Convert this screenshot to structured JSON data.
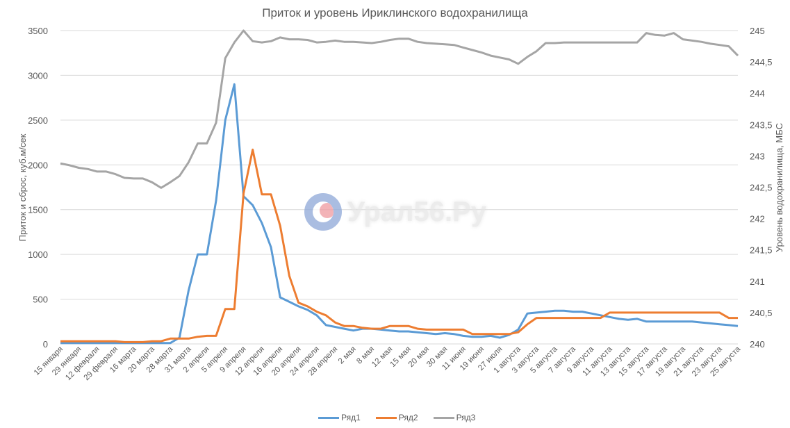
{
  "title": "Приток и уровень Ириклинского водохранилища",
  "watermark": "Урал56.Ру",
  "chart_data": {
    "type": "line",
    "title": "Приток и уровень Ириклинского водохранилища",
    "ylabel": "Приток и сброс, куб.м/сек",
    "y2label": "Уровень водохранилища, МБС",
    "ylim": [
      0,
      3500
    ],
    "y2lim": [
      240,
      245
    ],
    "yticks": [
      "0",
      "500",
      "1000",
      "1500",
      "2000",
      "2500",
      "3000",
      "3500"
    ],
    "y2ticks": [
      "240",
      "240,5",
      "241",
      "241,5",
      "242",
      "242,5",
      "243",
      "243,5",
      "244",
      "244,5",
      "245"
    ],
    "grid": true,
    "legend_position": "bottom",
    "x_tick_labels": [
      "15 января",
      "29 января",
      "12 февраля",
      "29 февраля",
      "16 марта",
      "20 марта",
      "28 марта",
      "31 марта",
      "2 апреля",
      "5 апреля",
      "9 апреля",
      "12 апреля",
      "16 апреля",
      "20 апреля",
      "24 апреля",
      "28 апреля",
      "2 мая",
      "8 мая",
      "12 мая",
      "15 мая",
      "20 мая",
      "30 мая",
      "11 июня",
      "19 июня",
      "27 июля",
      "1 августа",
      "3 августа",
      "5 августа",
      "7 августа",
      "9 августа",
      "11 августа",
      "13 августа",
      "15 августа",
      "17 августа",
      "19 августа",
      "21 августа",
      "23 августа",
      "25 августа"
    ],
    "series": [
      {
        "name": "Ряд1",
        "axis": "left",
        "color": "#5b9bd5",
        "values": [
          10,
          10,
          10,
          10,
          10,
          10,
          10,
          10,
          10,
          10,
          10,
          10,
          10,
          70,
          600,
          1000,
          1000,
          1600,
          2500,
          2900,
          1650,
          1550,
          1350,
          1080,
          520,
          470,
          420,
          380,
          320,
          210,
          190,
          170,
          150,
          170,
          170,
          160,
          150,
          140,
          140,
          130,
          120,
          110,
          120,
          110,
          90,
          80,
          80,
          90,
          70,
          100,
          160,
          340,
          350,
          360,
          370,
          370,
          360,
          360,
          340,
          320,
          300,
          280,
          270,
          280,
          250,
          250,
          250,
          250,
          250,
          250,
          240,
          230,
          220,
          210,
          200
        ]
      },
      {
        "name": "Ряд2",
        "axis": "left",
        "color": "#ed7d31",
        "values": [
          30,
          30,
          30,
          30,
          30,
          30,
          30,
          20,
          20,
          20,
          30,
          30,
          60,
          60,
          60,
          80,
          90,
          90,
          390,
          390,
          1680,
          2170,
          1670,
          1670,
          1320,
          760,
          460,
          420,
          360,
          320,
          240,
          200,
          200,
          180,
          170,
          170,
          200,
          200,
          200,
          170,
          160,
          160,
          160,
          160,
          160,
          110,
          110,
          110,
          110,
          110,
          130,
          220,
          290,
          290,
          290,
          290,
          290,
          290,
          290,
          290,
          350,
          350,
          350,
          350,
          350,
          350,
          350,
          350,
          350,
          350,
          350,
          350,
          350,
          290,
          290
        ]
      },
      {
        "name": "Ряд3",
        "axis": "right",
        "color": "#a5a5a5",
        "values": [
          242.88,
          242.85,
          242.81,
          242.79,
          242.75,
          242.75,
          242.71,
          242.65,
          242.64,
          242.64,
          242.58,
          242.49,
          242.58,
          242.68,
          242.9,
          243.2,
          243.2,
          243.53,
          244.56,
          244.81,
          245.0,
          244.83,
          244.81,
          244.83,
          244.89,
          244.86,
          244.86,
          244.85,
          244.81,
          244.82,
          244.84,
          244.82,
          244.82,
          244.81,
          244.8,
          244.82,
          244.85,
          244.87,
          244.87,
          244.82,
          244.8,
          244.79,
          244.78,
          244.77,
          244.73,
          244.69,
          244.65,
          244.6,
          244.57,
          244.54,
          244.47,
          244.58,
          244.67,
          244.8,
          244.8,
          244.81,
          244.81,
          244.81,
          244.81,
          244.81,
          244.81,
          244.81,
          244.81,
          244.81,
          244.96,
          244.93,
          244.92,
          244.96,
          244.86,
          244.84,
          244.82,
          244.79,
          244.77,
          244.75,
          244.6
        ]
      }
    ]
  },
  "legend": [
    {
      "label": "Ряд1",
      "color": "#5b9bd5"
    },
    {
      "label": "Ряд2",
      "color": "#ed7d31"
    },
    {
      "label": "Ряд3",
      "color": "#a5a5a5"
    }
  ]
}
